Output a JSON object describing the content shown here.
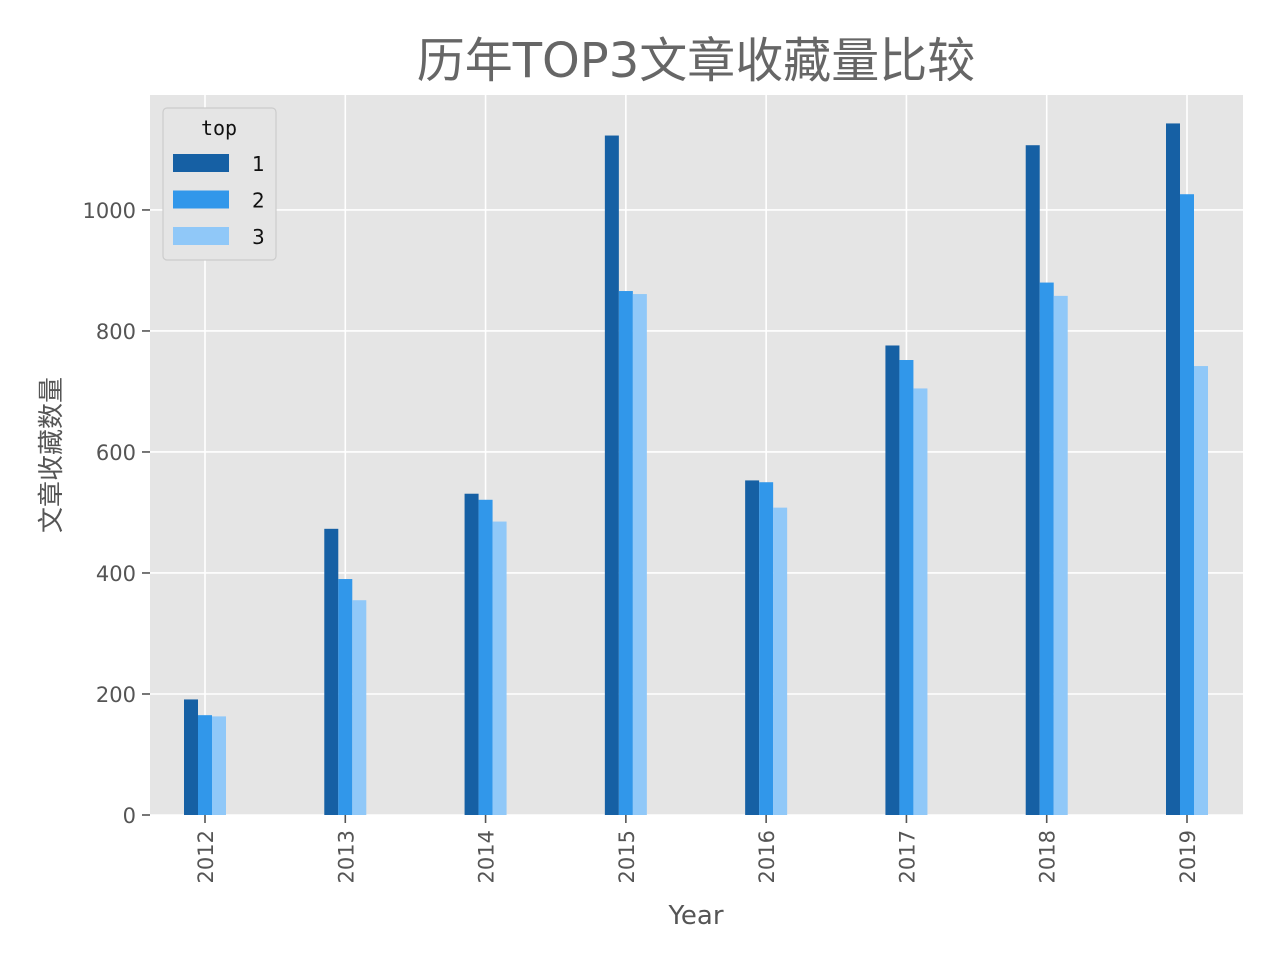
{
  "chart_data": {
    "type": "bar",
    "title": "历年TOP3文章收藏量比较",
    "xlabel": "Year",
    "ylabel": "文章收藏数量",
    "categories": [
      "2012",
      "2013",
      "2014",
      "2015",
      "2016",
      "2017",
      "2018",
      "2019"
    ],
    "ylim": [
      0,
      1190
    ],
    "yticks": [
      0,
      200,
      400,
      600,
      800,
      1000
    ],
    "grid": true,
    "legend": {
      "title": "top",
      "position": "top-left"
    },
    "series": [
      {
        "name": "1",
        "color": "#1660a4",
        "values": [
          191,
          473,
          531,
          1123,
          553,
          776,
          1107,
          1143
        ]
      },
      {
        "name": "2",
        "color": "#3197ea",
        "values": [
          165,
          390,
          521,
          866,
          550,
          752,
          880,
          1026
        ]
      },
      {
        "name": "3",
        "color": "#90c8f8",
        "values": [
          163,
          355,
          485,
          861,
          508,
          705,
          858,
          742
        ]
      }
    ]
  }
}
